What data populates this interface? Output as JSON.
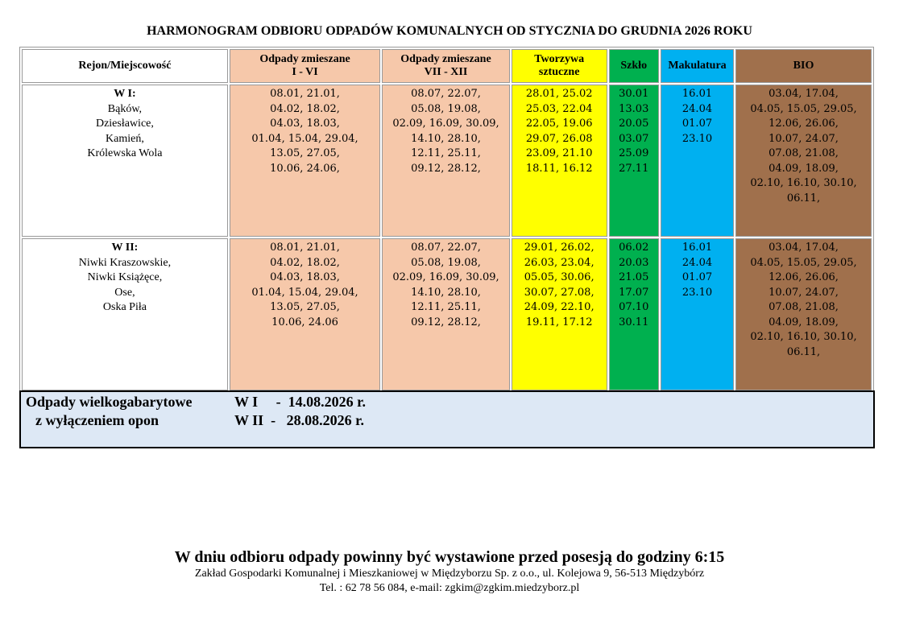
{
  "title": "HARMONOGRAM ODBIORU ODPADÓW KOMUNALNYCH OD STYCZNIA DO GRUDNIA 2026 ROKU",
  "colors": {
    "mixed": "#f6c8aa",
    "plastic": "#ffff00",
    "glass": "#00b04f",
    "paper": "#00b0f0",
    "bio": "#a0704c",
    "bulky_bg": "#dde8f5"
  },
  "headers": [
    "Rejon/Miejscowość",
    "Odpady zmieszane\nI - VI",
    "Odpady zmieszane\nVII - XII",
    "Tworzywa\nsztuczne",
    "Szkło",
    "Makulatura",
    "BIO"
  ],
  "rows": [
    {
      "region_name": "W I:",
      "region_places": "Bąków,\nDziesławice,\nKamień,\nKrólewska Wola",
      "mixed_1": "08.01, 21.01,\n04.02, 18.02,\n04.03, 18.03,\n01.04, 15.04, 29.04,\n13.05, 27.05,\n10.06, 24.06,",
      "mixed_2": "08.07, 22.07,\n05.08, 19.08,\n02.09, 16.09, 30.09,\n14.10, 28.10,\n12.11, 25.11,\n09.12, 28.12,",
      "plastic": "28.01, 25.02\n25.03, 22.04\n22.05, 19.06\n29.07, 26.08\n23.09, 21.10\n18.11, 16.12",
      "glass": "30.01\n13.03\n20.05\n03.07\n25.09\n27.11",
      "paper": "16.01\n24.04\n01.07\n23.10",
      "bio": "03.04, 17.04,\n04.05, 15.05, 29.05,\n12.06, 26.06,\n10.07, 24.07,\n07.08, 21.08,\n04.09, 18.09,\n02.10, 16.10, 30.10,\n06.11,"
    },
    {
      "region_name": "W II:",
      "region_places": "Niwki Kraszowskie,\nNiwki Książęce,\nOse,\nOska Piła",
      "mixed_1": "08.01, 21.01,\n04.02, 18.02,\n04.03, 18.03,\n01.04, 15.04, 29.04,\n13.05, 27.05,\n10.06, 24.06",
      "mixed_2": "08.07, 22.07,\n05.08, 19.08,\n02.09, 16.09, 30.09,\n14.10, 28.10,\n12.11, 25.11,\n09.12, 28.12,",
      "plastic": "29.01, 26.02,\n26.03, 23.04,\n05.05, 30.06,\n30.07, 27.08,\n24.09, 22.10,\n19.11, 17.12",
      "glass": "06.02\n20.03\n21.05\n17.07\n07.10\n30.11",
      "paper": "16.01\n24.04\n01.07\n23.10",
      "bio": "03.04, 17.04,\n04.05, 15.05, 29.05,\n12.06, 26.06,\n10.07, 24.07,\n07.08, 21.08,\n04.09, 18.09,\n02.10, 16.10, 30.10,\n06.11,"
    }
  ],
  "bulky": {
    "label_line1": "Odpady wielkogabarytowe",
    "label_line2": "z wyłączeniem opon",
    "date_w1": "W I     -  14.08.2026 r.",
    "date_w2": "W II  -   28.08.2026 r."
  },
  "footer": {
    "notice": "W dniu odbioru odpady powinny być wystawione przed posesją do godziny 6:15",
    "company": "Zakład Gospodarki Komunalnej i Mieszkaniowej w Międzyborzu Sp. z o.o., ul. Kolejowa 9, 56-513 Międzybórz",
    "contact": "Tel. : 62 78 56 084, e-mail: zgkim@zgkim.miedzyborz.pl"
  }
}
